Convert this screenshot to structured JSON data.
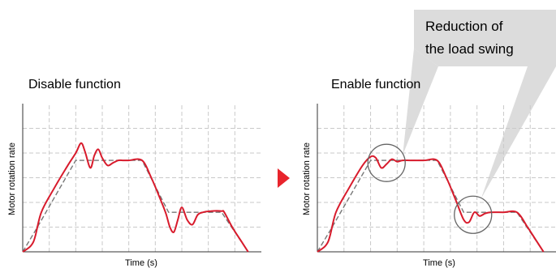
{
  "arrow_color": "#e8242c",
  "colors": {
    "actual": "#d81b2c",
    "command": "#777777",
    "callout": "#dcdcdc",
    "circle": "#666666",
    "grid": "#c9c9c9"
  },
  "callout": {
    "lines": [
      "Reduction of",
      "the load swing"
    ]
  },
  "chart_data": [
    {
      "type": "line",
      "title": "Disable function",
      "xlabel": "Time (s)",
      "ylabel": "Motor rotation rate",
      "xlim": [
        0,
        9
      ],
      "ylim": [
        0,
        6
      ],
      "grid": true,
      "series": [
        {
          "style": "dashed",
          "x": [
            0,
            0.5,
            2.0,
            4.5,
            5.5,
            7.5,
            8.5
          ],
          "y": [
            0,
            0.9,
            3.7,
            3.7,
            1.6,
            1.6,
            0
          ]
        },
        {
          "style": "solid",
          "x": [
            0,
            0.4,
            0.7,
            1.2,
            1.7,
            2.0,
            2.2,
            2.35,
            2.55,
            2.7,
            2.85,
            3.0,
            3.2,
            3.4,
            3.6,
            3.8,
            4.0,
            4.5,
            4.85,
            5.2,
            5.4,
            5.55,
            5.7,
            5.85,
            6.0,
            6.2,
            6.4,
            6.6,
            6.8,
            7.1,
            7.5,
            7.6,
            7.9,
            8.2,
            8.5
          ],
          "y": [
            0,
            0.4,
            1.6,
            2.6,
            3.5,
            4.0,
            4.4,
            4.05,
            3.4,
            3.9,
            4.15,
            3.8,
            3.5,
            3.6,
            3.7,
            3.7,
            3.7,
            3.7,
            3.0,
            2.1,
            1.55,
            1.0,
            0.8,
            1.3,
            1.8,
            1.3,
            1.1,
            1.5,
            1.6,
            1.65,
            1.65,
            1.6,
            1.0,
            0.5,
            0
          ]
        }
      ]
    },
    {
      "type": "line",
      "title": "Enable function",
      "xlabel": "Time (s)",
      "ylabel": "Motor rotation rate",
      "xlim": [
        0,
        9
      ],
      "ylim": [
        0,
        6
      ],
      "grid": true,
      "series": [
        {
          "style": "dashed",
          "x": [
            0,
            0.5,
            2.0,
            4.5,
            5.5,
            7.5,
            8.5
          ],
          "y": [
            0,
            0.9,
            3.7,
            3.7,
            1.6,
            1.6,
            0
          ]
        },
        {
          "style": "solid",
          "x": [
            0,
            0.4,
            0.7,
            1.2,
            1.7,
            2.0,
            2.2,
            2.4,
            2.6,
            2.8,
            3.0,
            3.2,
            3.5,
            4.0,
            4.5,
            4.85,
            5.2,
            5.5,
            5.7,
            5.9,
            6.1,
            6.3,
            6.5,
            7.0,
            7.5,
            7.9,
            8.2,
            8.5
          ],
          "y": [
            0,
            0.4,
            1.6,
            2.6,
            3.5,
            3.85,
            3.8,
            3.4,
            3.55,
            3.75,
            3.65,
            3.7,
            3.7,
            3.7,
            3.7,
            3.0,
            2.1,
            1.3,
            1.2,
            1.6,
            1.45,
            1.55,
            1.6,
            1.6,
            1.6,
            1.0,
            0.5,
            0
          ]
        }
      ],
      "highlights": [
        {
          "x": 2.6,
          "y": 3.6
        },
        {
          "x": 5.85,
          "y": 1.5
        }
      ]
    }
  ]
}
